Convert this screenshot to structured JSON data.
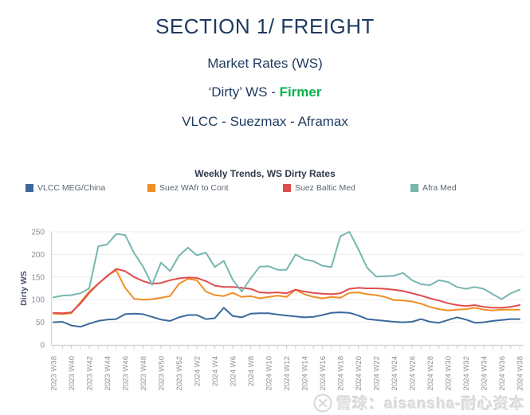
{
  "header": {
    "title": "SECTION 1/ FREIGHT",
    "subtitle_market": "Market Rates (WS)",
    "subtitle_dirty_prefix": "‘Dirty’ WS - ",
    "subtitle_dirty_status": "Firmer",
    "subtitle_classes": "VLCC - Suezmax - Aframax"
  },
  "colors": {
    "header_text": "#1f3a5f",
    "firmer_green": "#0db14b",
    "chart_title_text": "#2f3b4c",
    "legend_text": "#5b6570",
    "axis_text": "#8a929c",
    "gridline": "#ececec",
    "axis_line": "#cfcfcf",
    "watermark_gray": "#dfdfdf"
  },
  "chart_data": {
    "type": "line",
    "title": "Weekly Trends, WS Dirty Rates",
    "xlabel": "",
    "ylabel": "Dirty WS",
    "ylim": [
      0,
      250
    ],
    "yticks": [
      0,
      50,
      100,
      150,
      200,
      250
    ],
    "grid": true,
    "legend_position": "top",
    "x_label_every": 2,
    "x": [
      "2023 W38",
      "2023 W39",
      "2023 W40",
      "2023 W41",
      "2023 W42",
      "2023 W43",
      "2023 W44",
      "2023 W45",
      "2023 W46",
      "2023 W47",
      "2023 W48",
      "2023 W49",
      "2023 W50",
      "2023 W51",
      "2023 W52",
      "2024 W1",
      "2024 W2",
      "2024 W3",
      "2024 W4",
      "2024 W5",
      "2024 W6",
      "2024 W7",
      "2024 W8",
      "2024 W9",
      "2024 W10",
      "2024 W11",
      "2024 W12",
      "2024 W13",
      "2024 W14",
      "2024 W15",
      "2024 W16",
      "2024 W17",
      "2024 W18",
      "2024 W19",
      "2024 W20",
      "2024 W21",
      "2024 W22",
      "2024 W23",
      "2024 W24",
      "2024 W25",
      "2024 W26",
      "2024 W27",
      "2024 W28",
      "2024 W29",
      "2024 W30",
      "2024 W31",
      "2024 W32",
      "2024 W33",
      "2024 W34",
      "2024 W35",
      "2024 W36",
      "2024 W37",
      "2024 W38"
    ],
    "series": [
      {
        "name": "VLCC MEG/China",
        "color": "#3c699c",
        "values": [
          50,
          51,
          43,
          40,
          47,
          53,
          56,
          57,
          68,
          69,
          68,
          62,
          56,
          53,
          61,
          66,
          66,
          57,
          59,
          82,
          64,
          61,
          69,
          70,
          70,
          67,
          65,
          63,
          61,
          62,
          66,
          71,
          72,
          71,
          65,
          57,
          55,
          53,
          51,
          50,
          51,
          57,
          51,
          49,
          55,
          61,
          56,
          49,
          50,
          53,
          55,
          57,
          57
        ]
      },
      {
        "name": "Suez WAfr to Cont",
        "color": "#ef8e25",
        "values": [
          69,
          68,
          70,
          94,
          118,
          135,
          153,
          165,
          126,
          102,
          100,
          101,
          104,
          108,
          135,
          146,
          143,
          118,
          110,
          108,
          115,
          106,
          108,
          103,
          106,
          109,
          106,
          122,
          112,
          106,
          103,
          106,
          104,
          115,
          116,
          112,
          110,
          106,
          99,
          98,
          96,
          91,
          84,
          79,
          76,
          78,
          79,
          82,
          78,
          76,
          78,
          78,
          78
        ]
      },
      {
        "name": "Suez Baltic Med",
        "color": "#e04c4f",
        "values": [
          71,
          70,
          72,
          91,
          115,
          135,
          152,
          168,
          163,
          150,
          141,
          135,
          137,
          143,
          147,
          149,
          148,
          141,
          131,
          128,
          128,
          126,
          124,
          116,
          115,
          116,
          114,
          122,
          118,
          115,
          113,
          112,
          114,
          124,
          126,
          125,
          125,
          124,
          122,
          119,
          114,
          109,
          103,
          98,
          92,
          88,
          86,
          88,
          84,
          82,
          82,
          84,
          88
        ]
      },
      {
        "name": "Afra Med",
        "color": "#76b7b0",
        "values": [
          105,
          109,
          110,
          114,
          125,
          218,
          222,
          245,
          243,
          203,
          173,
          133,
          182,
          163,
          197,
          215,
          198,
          204,
          172,
          186,
          144,
          118,
          147,
          173,
          174,
          166,
          166,
          200,
          189,
          185,
          175,
          172,
          240,
          250,
          212,
          170,
          151,
          152,
          153,
          159,
          143,
          134,
          132,
          143,
          139,
          128,
          124,
          128,
          124,
          112,
          101,
          114,
          122
        ]
      }
    ]
  },
  "watermark": {
    "text": "雪球：aisansha-耐心资本",
    "logo": "xueqiu-snowball-icon"
  }
}
